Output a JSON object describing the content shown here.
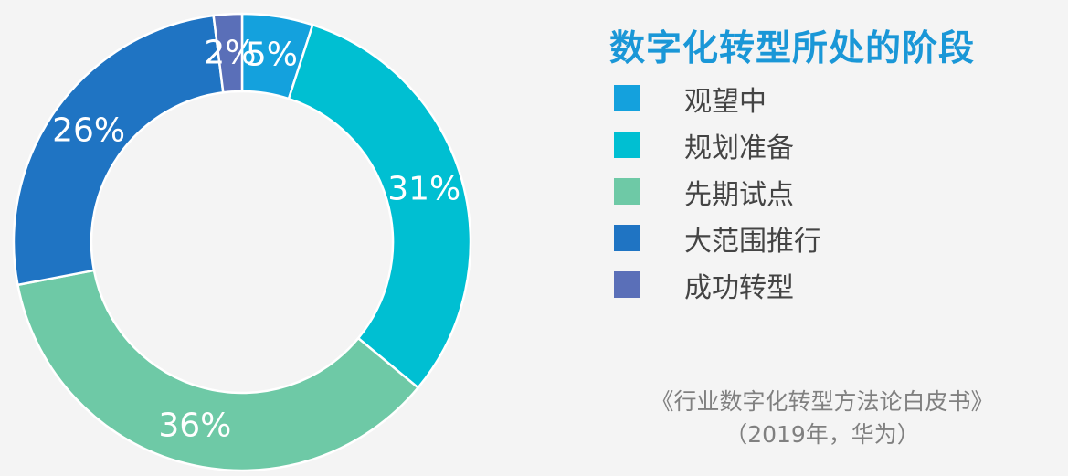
{
  "chart_data": {
    "type": "pie",
    "style": "donut",
    "title": "数字化转型所处的阶段",
    "slices": [
      {
        "name": "观望中",
        "value": 5,
        "label": "5%",
        "color": "#14a1dd"
      },
      {
        "name": "规划准备",
        "value": 31,
        "label": "31%",
        "color": "#00bfd2"
      },
      {
        "name": "先期试点",
        "value": 36,
        "label": "36%",
        "color": "#6ec9a6"
      },
      {
        "name": "大范围推行",
        "value": 26,
        "label": "26%",
        "color": "#1f74c3"
      },
      {
        "name": "成功转型",
        "value": 2,
        "label": "2%",
        "color": "#5a6fb8"
      }
    ],
    "legend_position": "right"
  },
  "source": {
    "line1": "《行业数字化转型方法论白皮书》",
    "line2": "（2019年，华为）"
  },
  "colors": {
    "title": "#1a97d7",
    "background": "#f4f4f4",
    "source_text": "#808080"
  }
}
